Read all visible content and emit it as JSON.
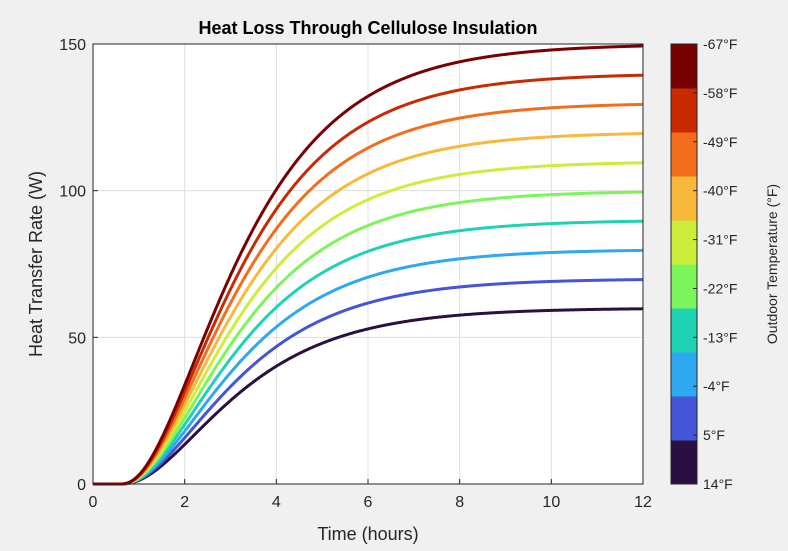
{
  "chart_data": {
    "type": "line",
    "title": "Heat Loss Through Cellulose Insulation",
    "xlabel": "Time (hours)",
    "ylabel": "Heat Transfer Rate (W)",
    "xlim": [
      0,
      12
    ],
    "ylim": [
      0,
      150
    ],
    "xticks": [
      0,
      2,
      4,
      6,
      8,
      10,
      12
    ],
    "yticks": [
      0,
      50,
      100,
      150
    ],
    "grid": true,
    "curve_model": {
      "onset_hours": 0.6,
      "rate_per_hour": 0.55,
      "shape_exponent": 2.4
    },
    "series": [
      {
        "name": "14°F",
        "color": "#2a1040",
        "steady_state_w": 60
      },
      {
        "name": "5°F",
        "color": "#4455d6",
        "steady_state_w": 70
      },
      {
        "name": "-4°F",
        "color": "#2fa8f2",
        "steady_state_w": 80
      },
      {
        "name": "-13°F",
        "color": "#1dd3b3",
        "steady_state_w": 90
      },
      {
        "name": "-22°F",
        "color": "#7cf55a",
        "steady_state_w": 100
      },
      {
        "name": "-31°F",
        "color": "#ccee3a",
        "steady_state_w": 110
      },
      {
        "name": "-40°F",
        "color": "#f8b93a",
        "steady_state_w": 120
      },
      {
        "name": "-49°F",
        "color": "#f46d1c",
        "steady_state_w": 130
      },
      {
        "name": "-58°F",
        "color": "#c82a04",
        "steady_state_w": 140
      },
      {
        "name": "-67°F",
        "color": "#790000",
        "steady_state_w": 150
      }
    ],
    "colorbar": {
      "label": "Outdoor Temperature (°F)",
      "tick_labels": [
        "14°F",
        "5°F",
        "-4°F",
        "-13°F",
        "-22°F",
        "-31°F",
        "-40°F",
        "-49°F",
        "-58°F",
        "-67°F"
      ],
      "colors": [
        "#2a1040",
        "#4455d6",
        "#2fa8f2",
        "#1dd3b3",
        "#7cf55a",
        "#ccee3a",
        "#f8b93a",
        "#f46d1c",
        "#c82a04",
        "#790000"
      ]
    }
  }
}
